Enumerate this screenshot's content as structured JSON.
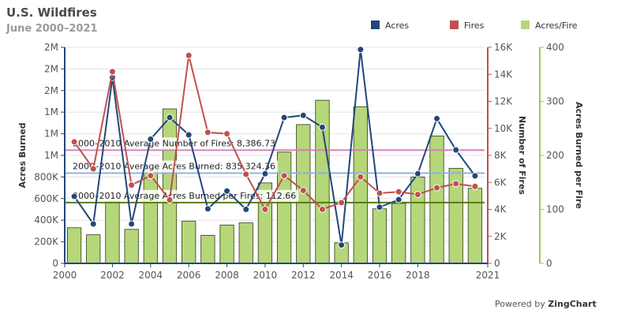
{
  "title": "U.S. Wildfires",
  "subtitle": "June 2000–2021",
  "footer": {
    "prefix": "Powered by ",
    "brand": "ZingChart"
  },
  "chart_data": {
    "type": "bar",
    "x": [
      2000,
      2001,
      2002,
      2003,
      2004,
      2005,
      2006,
      2007,
      2008,
      2009,
      2010,
      2011,
      2012,
      2013,
      2014,
      2015,
      2016,
      2017,
      2018,
      2019,
      2020,
      2021
    ],
    "x_ticks": [
      "2000",
      "2002",
      "2004",
      "2006",
      "2008",
      "2010",
      "2012",
      "2014",
      "2016",
      "2018",
      "2021"
    ],
    "legend": {
      "position": "top-right"
    },
    "series": [
      {
        "name": "Acres",
        "type": "line",
        "axis": "y",
        "color": "#24467a",
        "values": [
          620000,
          365000,
          1720000,
          365000,
          1150000,
          1350000,
          1190000,
          505000,
          670000,
          500000,
          830000,
          1350000,
          1370000,
          1260000,
          170000,
          1980000,
          520000,
          590000,
          830000,
          1340000,
          1050000,
          810000
        ]
      },
      {
        "name": "Fires",
        "type": "line",
        "axis": "y2",
        "color": "#c0504d",
        "values": [
          9000,
          7000,
          14200,
          5800,
          6500,
          4700,
          15400,
          9700,
          9600,
          6600,
          4000,
          6500,
          5400,
          4000,
          4500,
          6400,
          5200,
          5300,
          5100,
          5600,
          5900,
          5700
        ]
      },
      {
        "name": "Acres/Fire",
        "type": "bar",
        "axis": "y3",
        "color": "#b5d77a",
        "values": [
          66,
          53,
          115,
          63,
          177,
          286,
          78,
          52,
          71,
          75,
          149,
          206,
          257,
          302,
          38,
          290,
          101,
          111,
          160,
          236,
          176,
          139
        ]
      }
    ],
    "axes": {
      "y": {
        "title": "Acres Burned",
        "min": 0,
        "max": 2000000,
        "color": "#24467a",
        "tick_labels": [
          "0",
          "200K",
          "400K",
          "600K",
          "800K",
          "1M",
          "1M",
          "1M",
          "2M",
          "2M",
          "2M"
        ]
      },
      "y2": {
        "title": "Number of Fires",
        "min": 0,
        "max": 16000,
        "color": "#c0504d",
        "tick_labels": [
          "0",
          "2K",
          "4K",
          "6K",
          "8K",
          "10K",
          "12K",
          "14K",
          "16K"
        ]
      },
      "y3": {
        "title": "Acres Burned per Fire",
        "min": 0,
        "max": 400,
        "color": "#9bc55e",
        "tick_labels": [
          "0",
          "100",
          "200",
          "300",
          "400"
        ]
      }
    },
    "reference_lines": [
      {
        "label": "2000–2010 Average Number of Fires: 8,386.73",
        "value": 8386.73,
        "axis": "y2",
        "color": "#d480b8"
      },
      {
        "label": "2000–2010 Average Acres Burned: 835,324.36",
        "value": 835324.36,
        "axis": "y",
        "color": "#8fb0e0"
      },
      {
        "label": "2000–2010 Average Acres Burned per Fires: 112.66",
        "value": 112.66,
        "axis": "y3",
        "color": "#5a7a10"
      }
    ]
  }
}
